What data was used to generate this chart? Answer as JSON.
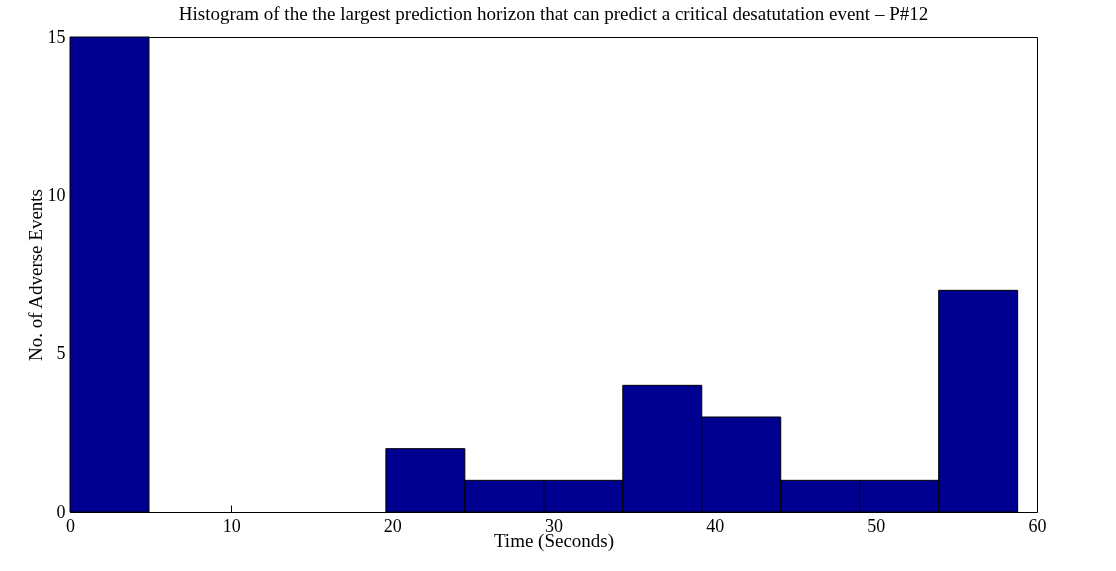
{
  "chart_data": {
    "type": "histogram",
    "title": "Histogram of the the largest prediction horizon that can predict a critical desatutation event – P#12",
    "xlabel": "Time (Seconds)",
    "ylabel": "No. of Adverse Events",
    "bins": [
      0,
      4.9,
      9.8,
      14.7,
      19.6,
      24.5,
      29.4,
      34.3,
      39.2,
      44.1,
      49,
      53.9,
      58.8
    ],
    "values": [
      15,
      0,
      0,
      0,
      2,
      1,
      1,
      4,
      3,
      1,
      1,
      7
    ],
    "color": "#000090",
    "xlim": [
      0,
      60
    ],
    "xticks": [
      0,
      10,
      20,
      30,
      40,
      50,
      60
    ],
    "ylim": [
      0,
      15
    ],
    "yticks": [
      0,
      5,
      10,
      15
    ]
  }
}
